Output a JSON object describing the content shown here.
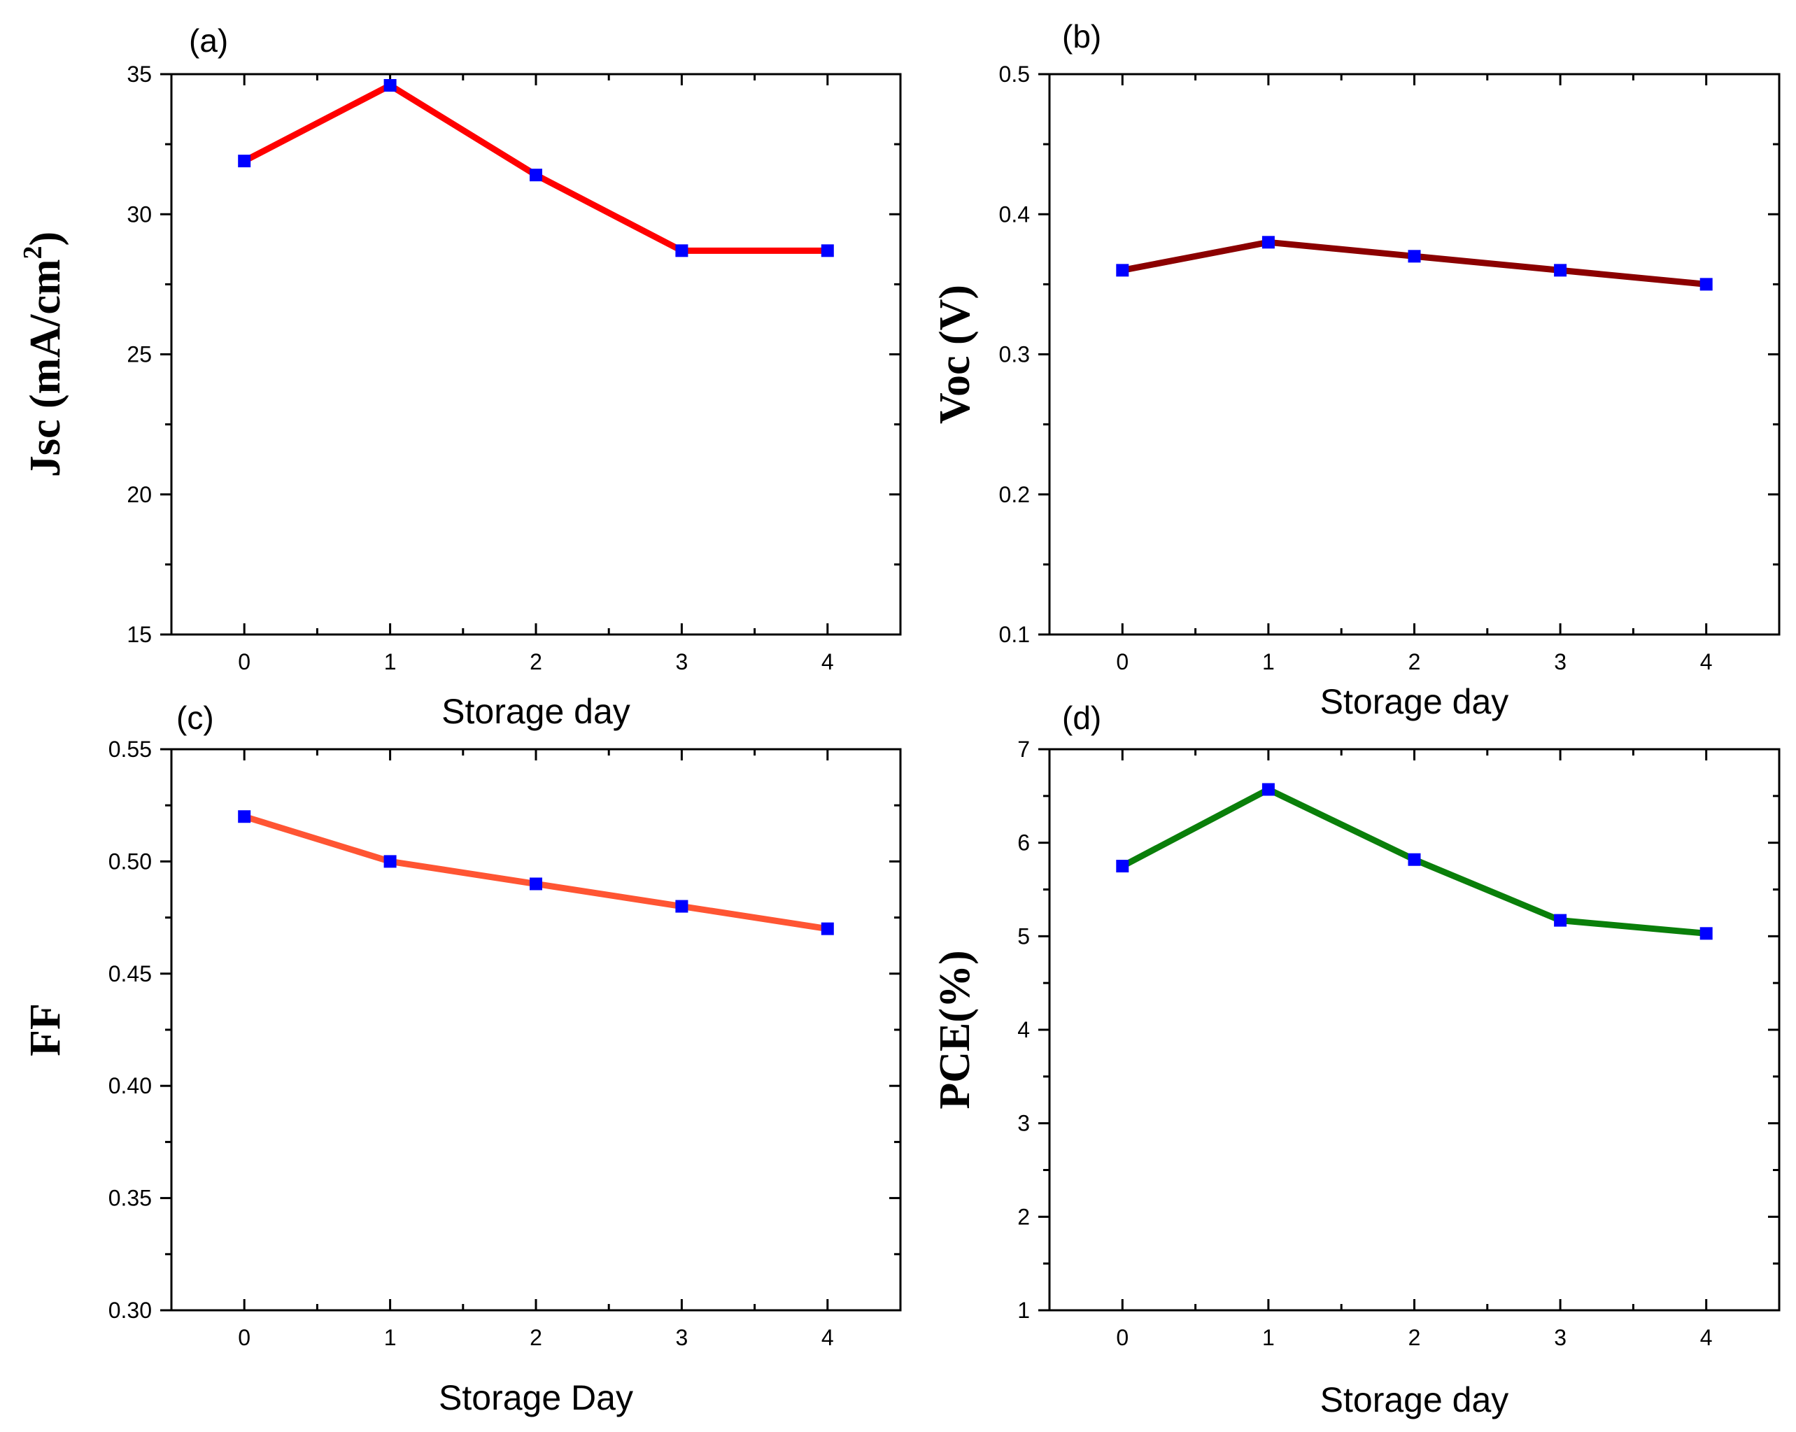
{
  "chart_data": [
    {
      "type": "line",
      "panel": "(a)",
      "title": "",
      "xlabel": "Storage day",
      "ylabel": "Jsc (mA/cm",
      "ylabel_sup": "2",
      "ylabel_close": ")",
      "x": [
        0,
        1,
        2,
        3,
        4
      ],
      "series": [
        {
          "name": "Jsc",
          "values": [
            31.9,
            34.6,
            31.4,
            28.7,
            28.7
          ],
          "color": "#ff0000"
        }
      ],
      "xlim": [
        -0.5,
        4.5
      ],
      "ylim": [
        15,
        35
      ],
      "xticks": [
        0,
        1,
        2,
        3,
        4
      ],
      "xtick_labels": [
        "0",
        "1",
        "2",
        "3",
        "4"
      ],
      "yticks": [
        15,
        20,
        25,
        30,
        35
      ],
      "ytick_labels": [
        "15",
        "20",
        "25",
        "30",
        "35"
      ],
      "marker_color": "#0000ff"
    },
    {
      "type": "line",
      "panel": "(b)",
      "title": "",
      "xlabel": "Storage day",
      "ylabel": "Voc (V)",
      "x": [
        0,
        1,
        2,
        3,
        4
      ],
      "series": [
        {
          "name": "Voc",
          "values": [
            0.36,
            0.38,
            0.37,
            0.36,
            0.35
          ],
          "color": "#8b0000"
        }
      ],
      "xlim": [
        -0.5,
        4.5
      ],
      "ylim": [
        0.1,
        0.5
      ],
      "xticks": [
        0,
        1,
        2,
        3,
        4
      ],
      "xtick_labels": [
        "0",
        "1",
        "2",
        "3",
        "4"
      ],
      "yticks": [
        0.1,
        0.2,
        0.3,
        0.4,
        0.5
      ],
      "ytick_labels": [
        "0.1",
        "0.2",
        "0.3",
        "0.4",
        "0.5"
      ],
      "marker_color": "#0000ff"
    },
    {
      "type": "line",
      "panel": "(c)",
      "title": "",
      "xlabel": "Storage Day",
      "ylabel": "FF",
      "x": [
        0,
        1,
        2,
        3,
        4
      ],
      "series": [
        {
          "name": "FF",
          "values": [
            0.52,
            0.5,
            0.49,
            0.48,
            0.47
          ],
          "color": "#ff5533"
        }
      ],
      "xlim": [
        -0.5,
        4.5
      ],
      "ylim": [
        0.3,
        0.55
      ],
      "xticks": [
        0,
        1,
        2,
        3,
        4
      ],
      "xtick_labels": [
        "0",
        "1",
        "2",
        "3",
        "4"
      ],
      "yticks": [
        0.3,
        0.35,
        0.4,
        0.45,
        0.5,
        0.55
      ],
      "ytick_labels": [
        "0.30",
        "0.35",
        "0.40",
        "0.45",
        "0.50",
        "0.55"
      ],
      "marker_color": "#0000ff"
    },
    {
      "type": "line",
      "panel": "(d)",
      "title": "",
      "xlabel": "Storage day",
      "ylabel": "PCE(%)",
      "x": [
        0,
        1,
        2,
        3,
        4
      ],
      "series": [
        {
          "name": "PCE",
          "values": [
            5.75,
            6.57,
            5.82,
            5.17,
            5.03
          ],
          "color": "#0a7f0a"
        }
      ],
      "xlim": [
        -0.5,
        4.5
      ],
      "ylim": [
        1,
        7
      ],
      "xticks": [
        0,
        1,
        2,
        3,
        4
      ],
      "xtick_labels": [
        "0",
        "1",
        "2",
        "3",
        "4"
      ],
      "yticks": [
        1,
        2,
        3,
        4,
        5,
        6,
        7
      ],
      "ytick_labels": [
        "1",
        "2",
        "3",
        "4",
        "5",
        "6",
        "7"
      ],
      "marker_color": "#0000ff"
    }
  ]
}
